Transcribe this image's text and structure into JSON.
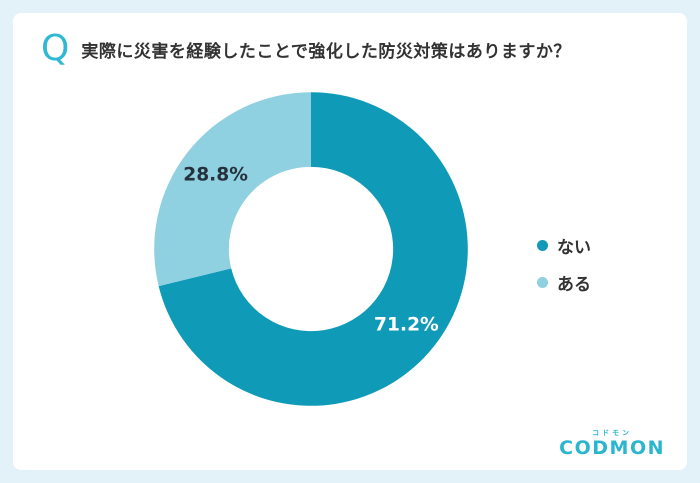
{
  "question": {
    "icon": "Q",
    "text": "実際に災害を経験したことで強化した防災対策はありますか？"
  },
  "chart_data": {
    "type": "pie",
    "subtype": "donut",
    "title": "実際に災害を経験したことで強化した防災対策はありますか？",
    "start_angle_deg": 0,
    "direction": "clockwise",
    "legend_position": "right",
    "slices": [
      {
        "label": "ない",
        "value": 71.2,
        "display": "71.2%",
        "color": "#0f9bb8",
        "label_color": "#ffffff"
      },
      {
        "label": "ある",
        "value": 28.8,
        "display": "28.8%",
        "color": "#8fd0e1",
        "label_color": "#25313c"
      }
    ]
  },
  "legend": {
    "items": [
      {
        "label": "ない",
        "color": "#0f9bb8"
      },
      {
        "label": "ある",
        "color": "#8fd0e1"
      }
    ]
  },
  "logo": {
    "kana": "コドモン",
    "text": "CODMON",
    "color": "#2bb6d0"
  }
}
